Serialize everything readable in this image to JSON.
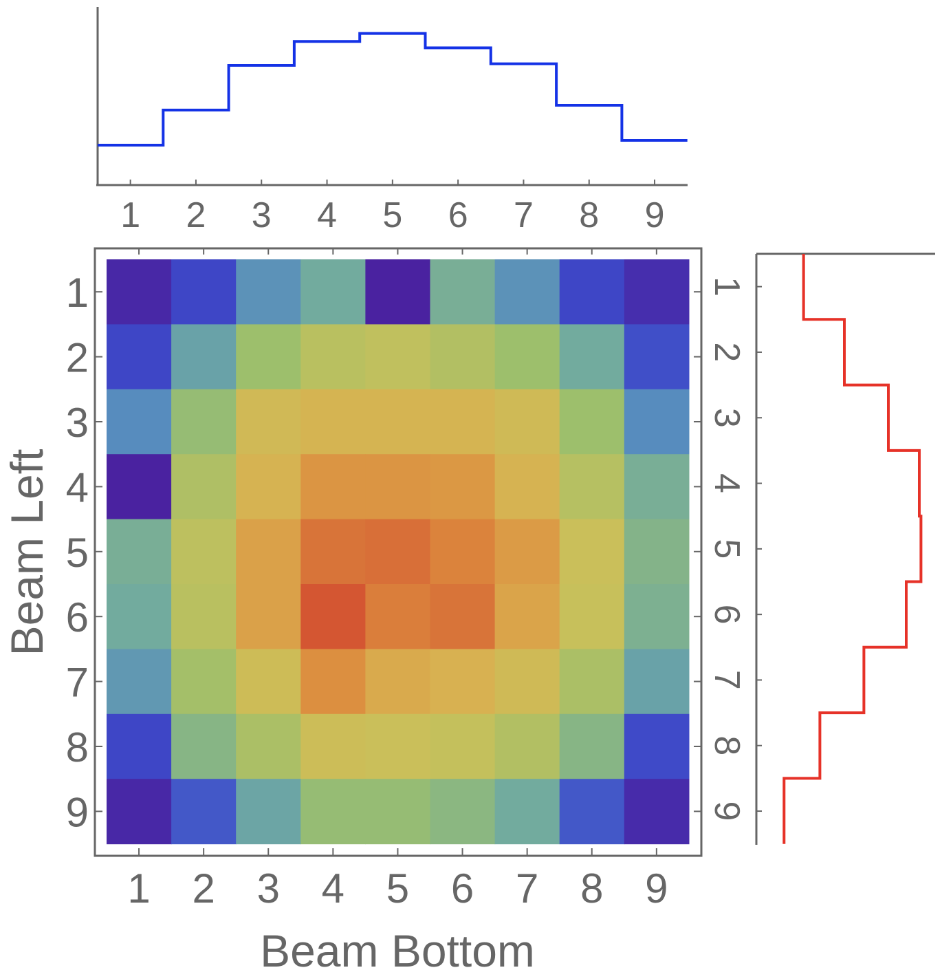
{
  "chart_data": [
    {
      "type": "heatmap",
      "xlabel": "Beam Bottom",
      "ylabel": "Beam Left",
      "x_categories": [
        "1",
        "2",
        "3",
        "4",
        "5",
        "6",
        "7",
        "8",
        "9"
      ],
      "y_categories": [
        "1",
        "2",
        "3",
        "4",
        "5",
        "6",
        "7",
        "8",
        "9"
      ],
      "colorscale": [
        "#4a22a0",
        "#3e48c8",
        "#4f82c8",
        "#70aaa0",
        "#9dbf6c",
        "#c9c05a",
        "#d9b050",
        "#dc8a3e",
        "#d24c30"
      ],
      "values": [
        [
          0.02,
          0.12,
          0.3,
          0.38,
          0.0,
          0.4,
          0.3,
          0.12,
          0.04
        ],
        [
          0.12,
          0.35,
          0.5,
          0.58,
          0.6,
          0.56,
          0.5,
          0.38,
          0.14
        ],
        [
          0.28,
          0.48,
          0.68,
          0.72,
          0.72,
          0.72,
          0.67,
          0.5,
          0.28
        ],
        [
          0.0,
          0.55,
          0.73,
          0.84,
          0.84,
          0.83,
          0.73,
          0.57,
          0.4
        ],
        [
          0.4,
          0.59,
          0.8,
          0.92,
          0.93,
          0.89,
          0.82,
          0.63,
          0.43
        ],
        [
          0.38,
          0.58,
          0.8,
          0.98,
          0.9,
          0.92,
          0.79,
          0.62,
          0.41
        ],
        [
          0.32,
          0.52,
          0.66,
          0.86,
          0.77,
          0.74,
          0.67,
          0.54,
          0.35
        ],
        [
          0.12,
          0.44,
          0.54,
          0.65,
          0.63,
          0.61,
          0.56,
          0.44,
          0.13
        ],
        [
          0.02,
          0.16,
          0.36,
          0.48,
          0.48,
          0.45,
          0.38,
          0.16,
          0.03
        ]
      ]
    },
    {
      "type": "line",
      "step": true,
      "series": [
        {
          "color": "#1432e6",
          "values": [
            0.25,
            0.47,
            0.75,
            0.9,
            0.95,
            0.86,
            0.76,
            0.5,
            0.28
          ]
        }
      ],
      "x": [
        "1",
        "2",
        "3",
        "4",
        "5",
        "6",
        "7",
        "8",
        "9"
      ],
      "ylim": [
        0,
        1
      ]
    },
    {
      "type": "line",
      "step": true,
      "orientation": "vertical",
      "series": [
        {
          "color": "#e63228",
          "values": [
            0.29,
            0.54,
            0.81,
            1.0,
            1.01,
            0.92,
            0.66,
            0.39,
            0.17
          ]
        }
      ],
      "y": [
        "1",
        "2",
        "3",
        "4",
        "5",
        "6",
        "7",
        "8",
        "9"
      ],
      "xlim": [
        0,
        1.05
      ]
    }
  ]
}
